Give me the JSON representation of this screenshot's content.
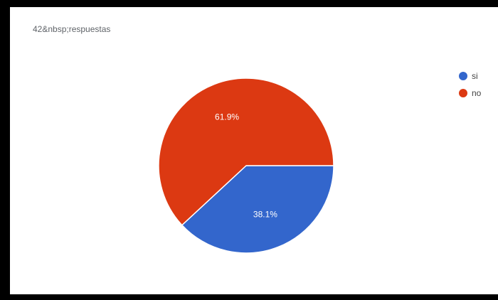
{
  "header": {
    "response_count": "42&nbsp;respuestas"
  },
  "chart_data": {
    "type": "pie",
    "series": [
      {
        "name": "si",
        "value": 38.1,
        "color": "#3366cc",
        "label": "38.1%"
      },
      {
        "name": "no",
        "value": 61.9,
        "color": "#dc3912",
        "label": "61.9%"
      }
    ],
    "legend_position": "right"
  }
}
